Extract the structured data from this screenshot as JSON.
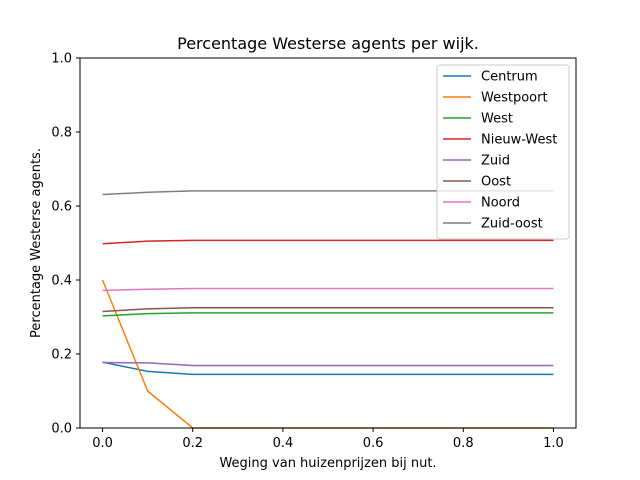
{
  "chart_data": {
    "type": "line",
    "title": "Percentage Westerse agents per wijk.",
    "xlabel": "Weging van huizenprijzen bij nut.",
    "ylabel": "Percentage Westerse agents.",
    "xlim": [
      -0.05,
      1.05
    ],
    "ylim": [
      0.0,
      1.0
    ],
    "xticks": [
      "0.0",
      "0.2",
      "0.4",
      "0.6",
      "0.8",
      "1.0"
    ],
    "yticks": [
      "0.0",
      "0.2",
      "0.4",
      "0.6",
      "0.8",
      "1.0"
    ],
    "grid": false,
    "legend_position": "top-right",
    "x": [
      0.0,
      0.1,
      0.2,
      0.3,
      0.4,
      0.5,
      0.6,
      0.7,
      0.8,
      0.9,
      1.0
    ],
    "series": [
      {
        "name": "Centrum",
        "color": "#1f77b4",
        "values": [
          0.178,
          0.153,
          0.145,
          0.145,
          0.145,
          0.145,
          0.145,
          0.145,
          0.145,
          0.145,
          0.145
        ]
      },
      {
        "name": "Westpoort",
        "color": "#ff7f0e",
        "values": [
          0.4,
          0.1,
          0.0,
          0.0,
          0.0,
          0.0,
          0.0,
          0.0,
          0.0,
          0.0,
          0.0
        ]
      },
      {
        "name": "West",
        "color": "#2ca02c",
        "values": [
          0.303,
          0.309,
          0.311,
          0.311,
          0.311,
          0.311,
          0.311,
          0.311,
          0.311,
          0.311,
          0.311
        ]
      },
      {
        "name": "Nieuw-West",
        "color": "#d62728",
        "values": [
          0.498,
          0.505,
          0.507,
          0.507,
          0.507,
          0.507,
          0.507,
          0.507,
          0.507,
          0.507,
          0.507
        ]
      },
      {
        "name": "Zuid",
        "color": "#9467bd",
        "values": [
          0.177,
          0.176,
          0.169,
          0.169,
          0.169,
          0.169,
          0.169,
          0.169,
          0.169,
          0.169,
          0.169
        ]
      },
      {
        "name": "Oost",
        "color": "#8c564b",
        "values": [
          0.315,
          0.322,
          0.325,
          0.325,
          0.325,
          0.325,
          0.325,
          0.325,
          0.325,
          0.325,
          0.325
        ]
      },
      {
        "name": "Noord",
        "color": "#e377c2",
        "values": [
          0.372,
          0.375,
          0.377,
          0.377,
          0.377,
          0.377,
          0.377,
          0.377,
          0.377,
          0.377,
          0.377
        ]
      },
      {
        "name": "Zuid-oost",
        "color": "#7f7f7f",
        "values": [
          0.631,
          0.637,
          0.641,
          0.641,
          0.641,
          0.641,
          0.641,
          0.641,
          0.641,
          0.641,
          0.641
        ]
      }
    ]
  }
}
